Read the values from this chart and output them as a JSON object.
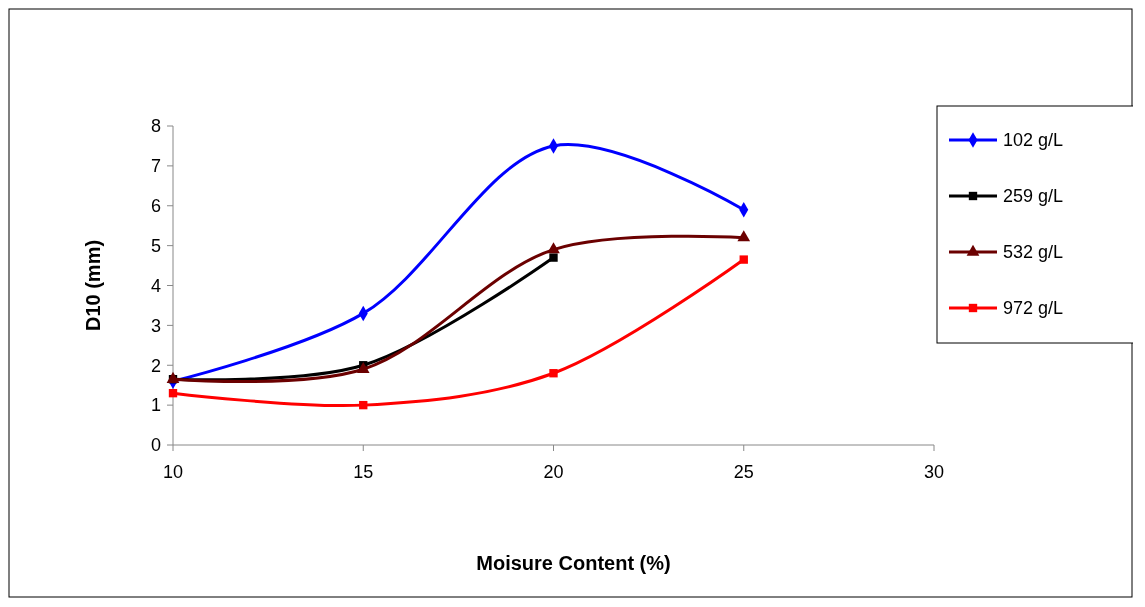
{
  "chart_data": {
    "type": "line",
    "xlabel": "Moisure Content (%)",
    "ylabel": "D10 (mm)",
    "x": [
      10,
      15,
      20,
      25
    ],
    "series": [
      {
        "name": "102 g/L",
        "color": "#0000ff",
        "marker": "diamond",
        "values": [
          1.6,
          3.3,
          7.5,
          5.9
        ]
      },
      {
        "name": "259 g/L",
        "color": "#000000",
        "marker": "square",
        "values": [
          1.65,
          2.0,
          4.7,
          null
        ]
      },
      {
        "name": "532 g/L",
        "color": "#6b0000",
        "marker": "triangle",
        "values": [
          1.65,
          1.9,
          4.9,
          5.2
        ]
      },
      {
        "name": "972 g/L",
        "color": "#ff0000",
        "marker": "square",
        "values": [
          1.3,
          1.0,
          1.8,
          4.65
        ]
      }
    ],
    "xlim": [
      10,
      30
    ],
    "xticks": [
      10,
      15,
      20,
      25,
      30
    ],
    "ylim": [
      0,
      8
    ],
    "yticks": [
      0,
      1,
      2,
      3,
      4,
      5,
      6,
      7,
      8
    ],
    "grid": false,
    "legend": "right"
  }
}
